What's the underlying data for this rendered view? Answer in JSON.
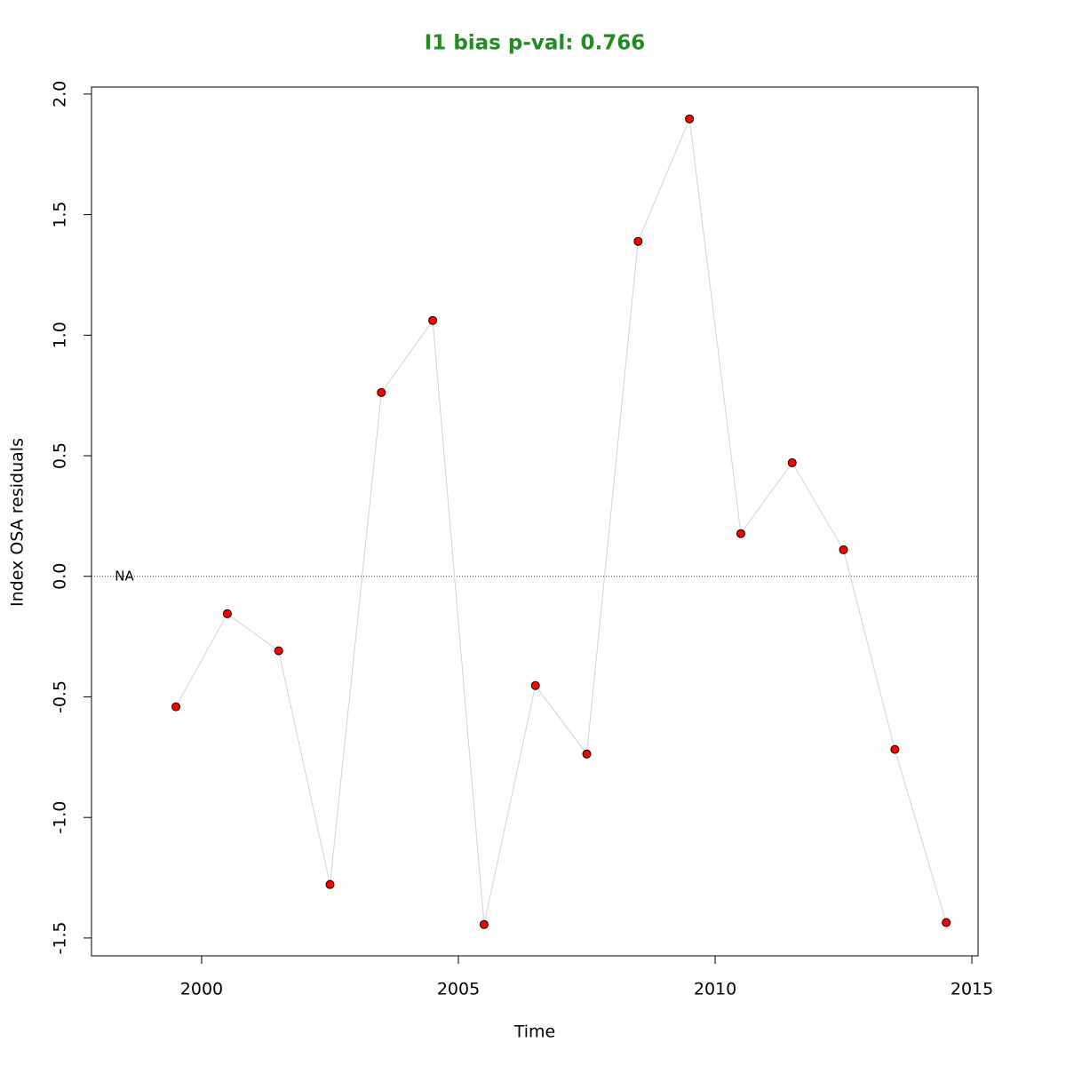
{
  "chart_data": {
    "type": "line",
    "title": "I1 bias p-val: 0.766",
    "title_color": "#228b22",
    "xlabel": "Time",
    "ylabel": "Index OSA residuals",
    "annotation": "NA",
    "reference_line": 0,
    "x": [
      1999.5,
      2000.5,
      2001.5,
      2002.5,
      2003.5,
      2004.5,
      2005.5,
      2006.5,
      2007.5,
      2008.5,
      2009.5,
      2010.5,
      2011.5,
      2012.5,
      2013.5,
      2014.5
    ],
    "series": [
      {
        "name": "residuals",
        "color": "#ff0000",
        "line_color": "#d3d3d3",
        "values": [
          -0.541,
          -0.155,
          -0.309,
          -1.278,
          0.762,
          1.061,
          -1.444,
          -0.453,
          -0.737,
          1.389,
          1.897,
          0.177,
          0.471,
          0.11,
          -0.718,
          -1.436
        ]
      }
    ],
    "xlim": [
      1997.855,
      2015.12
    ],
    "xticks": [
      2000,
      2005,
      2010,
      2015
    ],
    "ylim": [
      -1.574,
      2.029
    ],
    "yticks": [
      -1.5,
      {
        "value": -1.0,
        "label": "-1.0"
      },
      -0.5,
      {
        "value": 0,
        "label": "0.0"
      },
      0.5,
      {
        "value": 1.0,
        "label": "1.0"
      },
      1.5,
      {
        "value": 2.0,
        "label": "2.0"
      }
    ]
  }
}
